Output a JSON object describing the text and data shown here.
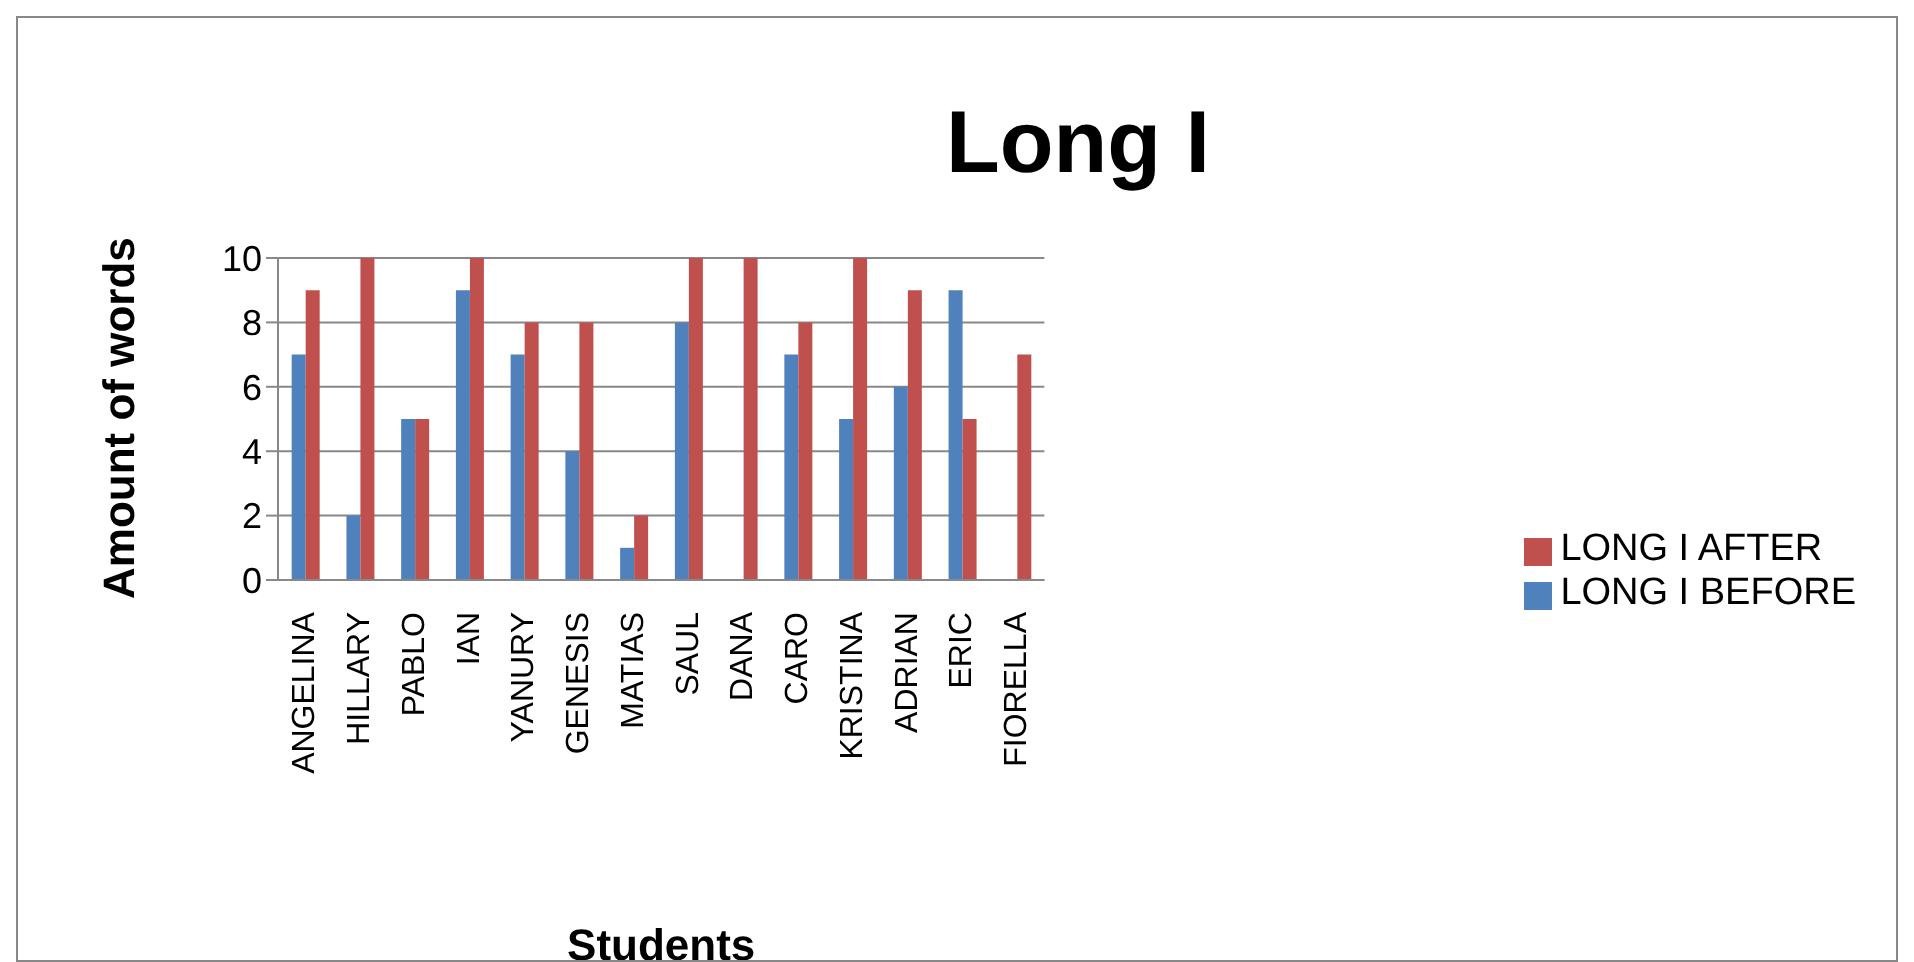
{
  "chart_data": {
    "type": "bar",
    "title": "Long I",
    "xlabel": "Students",
    "ylabel": "Amount of words",
    "categories": [
      "ANGELINA",
      "HILLARY",
      "PABLO",
      "IAN",
      "YANURY",
      "GENESIS",
      "MATIAS",
      "SAUL",
      "DANA",
      "CARO",
      "KRISTINA",
      "ADRIAN",
      "ERIC",
      "FIORELLA"
    ],
    "series": [
      {
        "name": "LONG I BEFORE",
        "color": "#4f81bd",
        "values": [
          7,
          2,
          5,
          9,
          7,
          4,
          1,
          8,
          0,
          7,
          5,
          6,
          9,
          0
        ]
      },
      {
        "name": "LONG I AFTER",
        "color": "#c0504d",
        "values": [
          9,
          10,
          5,
          10,
          8,
          8,
          2,
          10,
          10,
          8,
          10,
          9,
          5,
          7
        ]
      }
    ],
    "ylim": [
      0,
      10
    ],
    "yticks": [
      0,
      2,
      4,
      6,
      8,
      10
    ],
    "grid": "y",
    "legend": "right"
  }
}
